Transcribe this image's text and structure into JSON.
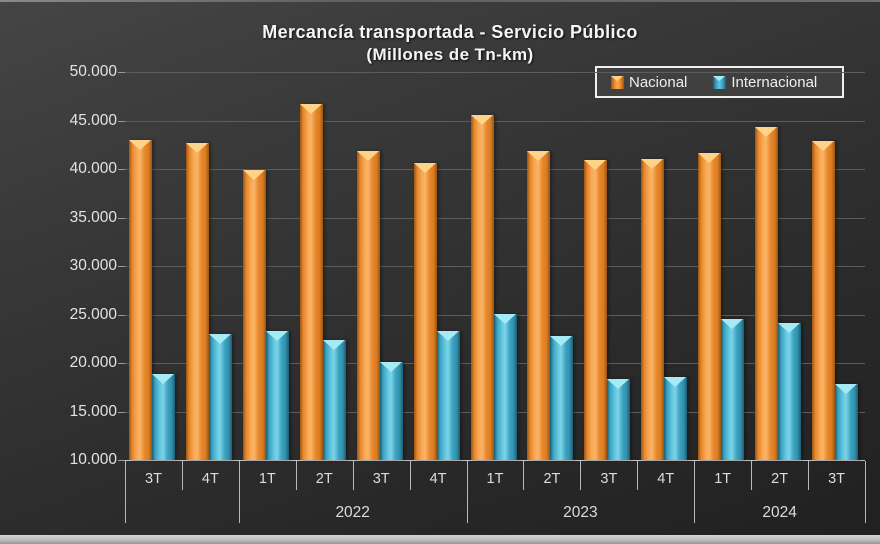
{
  "title": "Mercancía transportada  - Servicio Público",
  "subtitle": "(Millones de Tn-km)",
  "colors": {
    "background_dark": "#2b2b2b",
    "nacional": "#F2953C",
    "internacional": "#4FB8D4",
    "gridline": "#5d5d5d",
    "axis_text": "#e3e3e3",
    "legend_border": "#f0f0f0"
  },
  "chart_data": {
    "type": "bar",
    "title": "Mercancía transportada - Servicio Público",
    "subtitle": "(Millones de Tn-km)",
    "xlabel": "",
    "ylabel": "",
    "categories": [
      "3T",
      "4T",
      "1T",
      "2T",
      "3T",
      "4T",
      "1T",
      "2T",
      "3T",
      "4T",
      "1T",
      "2T",
      "3T"
    ],
    "year_groups": [
      {
        "label": "",
        "span": 2
      },
      {
        "label": "2022",
        "span": 4
      },
      {
        "label": "2023",
        "span": 4
      },
      {
        "label": "2024",
        "span": 3
      }
    ],
    "series": [
      {
        "name": "Nacional",
        "color": "#F2953C",
        "values": [
          43000,
          42700,
          39900,
          46700,
          41900,
          40600,
          45600,
          41900,
          40900,
          41000,
          41600,
          44300,
          42900
        ]
      },
      {
        "name": "Internacional",
        "color": "#4FB8D4",
        "values": [
          18900,
          23000,
          23300,
          22400,
          20100,
          23300,
          25100,
          22800,
          18400,
          18600,
          24500,
          24100,
          17800
        ]
      }
    ],
    "ylim": [
      10000,
      50000
    ],
    "ytick_step": 5000,
    "ytick_labels": [
      "50.000",
      "45.000",
      "40.000",
      "35.000",
      "30.000",
      "25.000",
      "20.000",
      "15.000",
      "10.000"
    ],
    "grid": true,
    "legend_position": "top-right"
  }
}
